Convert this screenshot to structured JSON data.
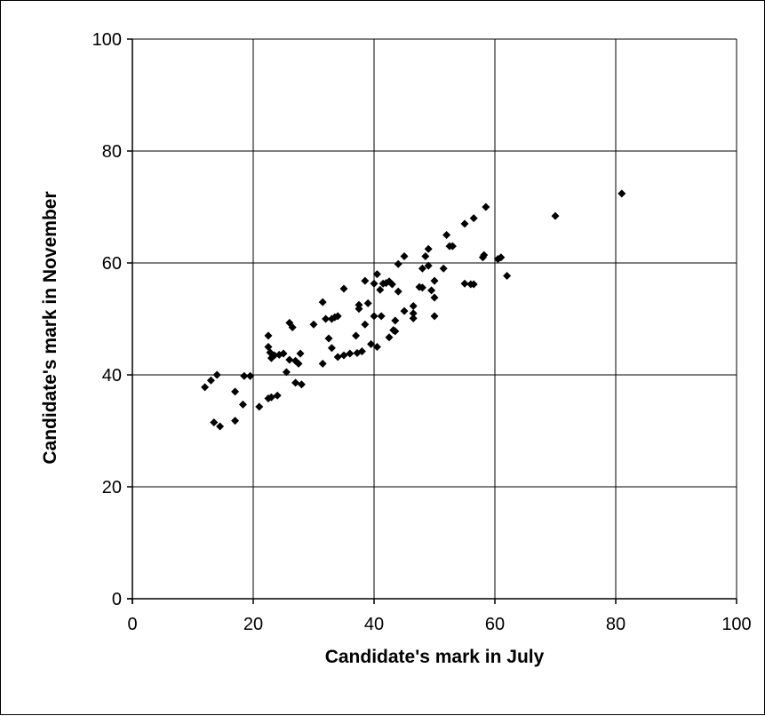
{
  "chart_data": {
    "type": "scatter",
    "title": "",
    "xlabel": "Candidate's mark in July",
    "ylabel": "Candidate's mark in November",
    "xlim": [
      0,
      100
    ],
    "ylim": [
      0,
      100
    ],
    "x_ticks": [
      "0",
      "20",
      "40",
      "60",
      "80",
      "100"
    ],
    "y_ticks": [
      "0",
      "20",
      "40",
      "60",
      "80",
      "100"
    ],
    "grid": true,
    "legend": "none",
    "marker": "diamond",
    "marker_color": "#000000",
    "series": [
      {
        "points": [
          [
            12,
            37.8
          ],
          [
            13,
            39
          ],
          [
            14,
            40
          ],
          [
            13.5,
            31.5
          ],
          [
            14.5,
            30.8
          ],
          [
            17,
            37
          ],
          [
            17,
            31.8
          ],
          [
            18.5,
            39.8
          ],
          [
            19.5,
            39.8
          ],
          [
            18.3,
            34.7
          ],
          [
            21,
            34.3
          ],
          [
            22.5,
            35.8
          ],
          [
            23,
            36
          ],
          [
            24,
            36.3
          ],
          [
            22.5,
            47
          ],
          [
            22.5,
            45
          ],
          [
            22.8,
            44
          ],
          [
            23,
            43
          ],
          [
            23.5,
            43.5
          ],
          [
            24.3,
            43.6
          ],
          [
            25,
            43.8
          ],
          [
            25.5,
            40.5
          ],
          [
            26,
            49.3
          ],
          [
            26,
            42.7
          ],
          [
            26.5,
            48.5
          ],
          [
            27,
            42.5
          ],
          [
            27.5,
            42
          ],
          [
            27.8,
            43.8
          ],
          [
            27,
            38.6
          ],
          [
            28,
            38.3
          ],
          [
            30,
            49
          ],
          [
            31.5,
            53
          ],
          [
            31.5,
            42
          ],
          [
            32,
            50
          ],
          [
            32.5,
            46.5
          ],
          [
            33,
            50
          ],
          [
            33,
            44.8
          ],
          [
            33.5,
            50.3
          ],
          [
            34,
            50.5
          ],
          [
            34,
            43.2
          ],
          [
            35,
            55.4
          ],
          [
            35,
            43.5
          ],
          [
            36,
            43.8
          ],
          [
            37,
            47
          ],
          [
            37.2,
            43.9
          ],
          [
            37.5,
            52.5
          ],
          [
            37.5,
            51.8
          ],
          [
            38,
            44.2
          ],
          [
            38.5,
            56.8
          ],
          [
            38.5,
            49
          ],
          [
            39,
            52.8
          ],
          [
            39.5,
            45.5
          ],
          [
            40,
            56.3
          ],
          [
            40,
            50.5
          ],
          [
            40.5,
            58
          ],
          [
            40.5,
            45
          ],
          [
            41,
            55.2
          ],
          [
            41.2,
            50.5
          ],
          [
            41.5,
            56.3
          ],
          [
            42,
            56.4
          ],
          [
            42.5,
            56.7
          ],
          [
            42.5,
            46.7
          ],
          [
            43,
            56.2
          ],
          [
            43.2,
            48
          ],
          [
            43.5,
            49.7
          ],
          [
            43.5,
            47.8
          ],
          [
            44,
            59.8
          ],
          [
            44,
            54.9
          ],
          [
            45,
            61.2
          ],
          [
            45,
            51.4
          ],
          [
            46.5,
            52.3
          ],
          [
            46.5,
            51
          ],
          [
            46.5,
            50.1
          ],
          [
            47.5,
            55.7
          ],
          [
            48,
            55.6
          ],
          [
            48,
            59
          ],
          [
            48.5,
            61.2
          ],
          [
            49,
            59.5
          ],
          [
            49,
            62.5
          ],
          [
            49.5,
            55.1
          ],
          [
            50,
            56.8
          ],
          [
            50,
            53.8
          ],
          [
            50,
            50.5
          ],
          [
            51.5,
            59
          ],
          [
            52,
            65
          ],
          [
            52.5,
            63
          ],
          [
            53,
            63
          ],
          [
            55,
            67
          ],
          [
            55,
            56.3
          ],
          [
            56,
            56.2
          ],
          [
            56.5,
            56.2
          ],
          [
            56.5,
            68
          ],
          [
            58,
            61
          ],
          [
            58.2,
            61.4
          ],
          [
            58.5,
            70
          ],
          [
            60.5,
            60.7
          ],
          [
            61,
            61
          ],
          [
            62,
            57.7
          ],
          [
            70,
            68.4
          ],
          [
            81,
            72.4
          ]
        ]
      }
    ]
  }
}
